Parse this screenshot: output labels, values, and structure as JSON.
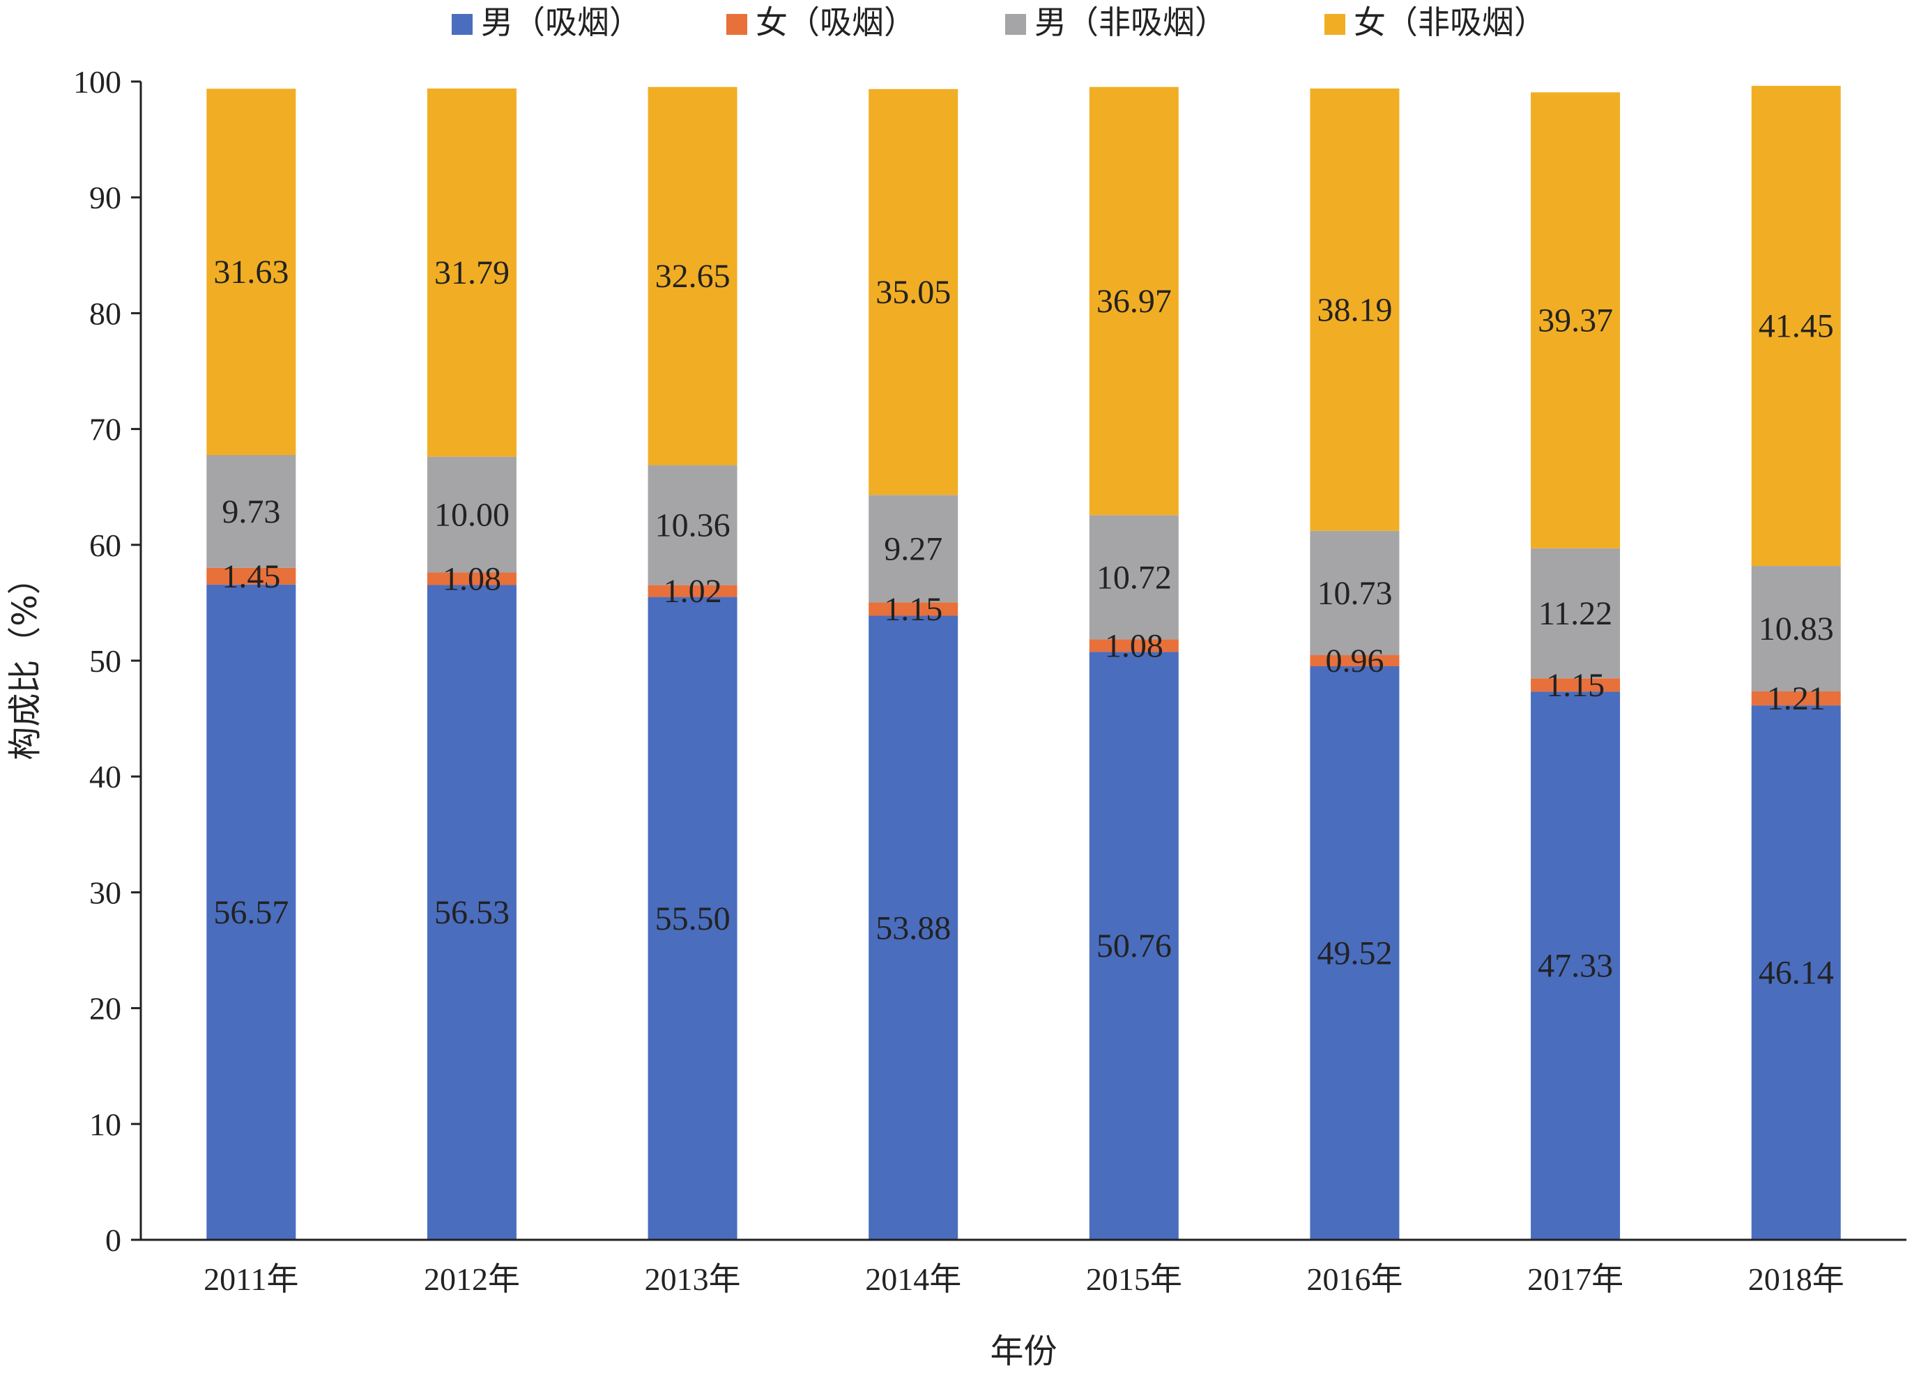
{
  "chart_data": {
    "type": "stacked-bar",
    "title": "",
    "xlabel": "年份",
    "ylabel": "构成比（%）",
    "ylim": [
      0,
      100
    ],
    "yticks": [
      0,
      10,
      20,
      30,
      40,
      50,
      60,
      70,
      80,
      90,
      100
    ],
    "categories": [
      "2011年",
      "2012年",
      "2013年",
      "2014年",
      "2015年",
      "2016年",
      "2017年",
      "2018年"
    ],
    "legend_position": "top",
    "grid": false,
    "series": [
      {
        "name": "男（吸烟）",
        "color": "#4A6DBE",
        "values": [
          56.57,
          56.53,
          55.5,
          53.88,
          50.76,
          49.52,
          47.33,
          46.14
        ],
        "labels": [
          "56.57",
          "56.53",
          "55.50",
          "53.88",
          "50.76",
          "49.52",
          "47.33",
          "46.14"
        ]
      },
      {
        "name": "女（吸烟）",
        "color": "#E8703A",
        "values": [
          1.45,
          1.08,
          1.02,
          1.15,
          1.08,
          0.96,
          1.15,
          1.21
        ],
        "labels": [
          "1.45",
          "1.08",
          "1.02",
          "1.15",
          "1.08",
          "0.96",
          "1.15",
          "1.21"
        ]
      },
      {
        "name": "男（非吸烟）",
        "color": "#A5A5A7",
        "values": [
          9.73,
          10.0,
          10.36,
          9.27,
          10.72,
          10.73,
          11.22,
          10.83
        ],
        "labels": [
          "9.73",
          "10.00",
          "10.36",
          "9.27",
          "10.72",
          "10.73",
          "11.22",
          "10.83"
        ]
      },
      {
        "name": "女（非吸烟）",
        "color": "#F1AE24",
        "values": [
          31.63,
          31.79,
          32.65,
          35.05,
          36.97,
          38.19,
          39.37,
          41.45
        ],
        "labels": [
          "31.63",
          "31.79",
          "32.65",
          "35.05",
          "36.97",
          "38.19",
          "39.37",
          "41.45"
        ]
      }
    ]
  }
}
